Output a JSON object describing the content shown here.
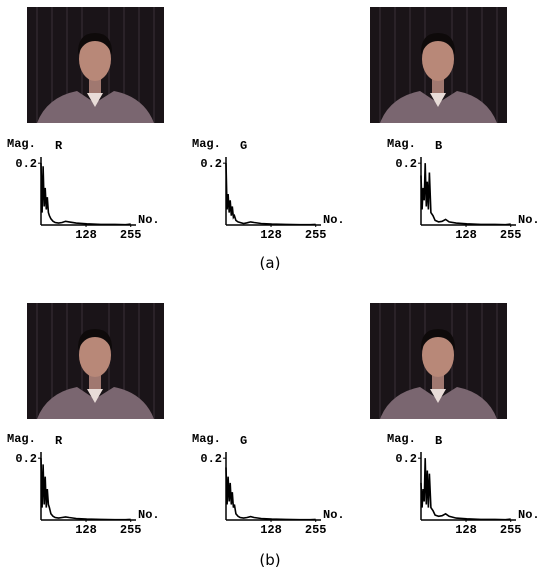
{
  "chart_data": [
    {
      "type": "line",
      "title": "R",
      "y_label": "Mag.",
      "x_label": "No.",
      "color": "#000000",
      "x": [
        0,
        3,
        6,
        9,
        12,
        15,
        18,
        21,
        24,
        28,
        34,
        40,
        50,
        60,
        70,
        80,
        100,
        130,
        170,
        210,
        240,
        255
      ],
      "values": [
        0.2,
        0.04,
        0.19,
        0.06,
        0.12,
        0.05,
        0.09,
        0.04,
        0.03,
        0.02,
        0.012,
        0.008,
        0.006,
        0.008,
        0.012,
        0.01,
        0.006,
        0.004,
        0.002,
        0.002,
        0.001,
        0.003
      ],
      "xlim": [
        0,
        270
      ],
      "ylim": [
        0,
        0.22
      ],
      "xticks": [
        128,
        255
      ],
      "yticks": [
        0.2
      ]
    },
    {
      "type": "line",
      "title": "G",
      "y_label": "Mag.",
      "x_label": "No.",
      "color": "#000000",
      "x": [
        0,
        3,
        6,
        9,
        12,
        15,
        18,
        21,
        24,
        28,
        34,
        40,
        50,
        60,
        70,
        80,
        100,
        130,
        170,
        210,
        240,
        255
      ],
      "values": [
        0.2,
        0.05,
        0.1,
        0.04,
        0.08,
        0.03,
        0.06,
        0.025,
        0.03,
        0.015,
        0.01,
        0.008,
        0.005,
        0.007,
        0.01,
        0.008,
        0.005,
        0.003,
        0.002,
        0.001,
        0.001,
        0.002
      ],
      "xlim": [
        0,
        270
      ],
      "ylim": [
        0,
        0.22
      ],
      "xticks": [
        128,
        255
      ],
      "yticks": [
        0.2
      ]
    },
    {
      "type": "line",
      "title": "B",
      "y_label": "Mag.",
      "x_label": "No.",
      "color": "#000000",
      "x": [
        0,
        3,
        6,
        9,
        12,
        15,
        18,
        21,
        24,
        28,
        34,
        40,
        50,
        60,
        70,
        80,
        100,
        130,
        170,
        210,
        240,
        255
      ],
      "values": [
        0.16,
        0.05,
        0.12,
        0.08,
        0.2,
        0.06,
        0.14,
        0.05,
        0.17,
        0.04,
        0.03,
        0.015,
        0.01,
        0.012,
        0.018,
        0.01,
        0.006,
        0.004,
        0.002,
        0.002,
        0.001,
        0.003
      ],
      "xlim": [
        0,
        270
      ],
      "ylim": [
        0,
        0.22
      ],
      "xticks": [
        128,
        255
      ],
      "yticks": [
        0.2
      ]
    },
    {
      "type": "line",
      "title": "R",
      "y_label": "Mag.",
      "x_label": "No.",
      "color": "#000000",
      "x": [
        0,
        3,
        6,
        9,
        12,
        15,
        18,
        21,
        24,
        28,
        34,
        40,
        50,
        60,
        70,
        80,
        100,
        130,
        170,
        210,
        240,
        255
      ],
      "values": [
        0.2,
        0.04,
        0.18,
        0.05,
        0.14,
        0.04,
        0.1,
        0.05,
        0.04,
        0.02,
        0.012,
        0.008,
        0.006,
        0.008,
        0.01,
        0.008,
        0.005,
        0.003,
        0.002,
        0.001,
        0.001,
        0.002
      ],
      "xlim": [
        0,
        270
      ],
      "ylim": [
        0,
        0.22
      ],
      "xticks": [
        128,
        255
      ],
      "yticks": [
        0.2
      ]
    },
    {
      "type": "line",
      "title": "G",
      "y_label": "Mag.",
      "x_label": "No.",
      "color": "#000000",
      "x": [
        0,
        3,
        6,
        9,
        12,
        15,
        18,
        21,
        24,
        28,
        34,
        40,
        50,
        60,
        70,
        80,
        100,
        130,
        170,
        210,
        240,
        255
      ],
      "values": [
        0.17,
        0.05,
        0.14,
        0.06,
        0.12,
        0.05,
        0.09,
        0.04,
        0.05,
        0.02,
        0.012,
        0.008,
        0.006,
        0.008,
        0.011,
        0.008,
        0.005,
        0.003,
        0.002,
        0.001,
        0.001,
        0.002
      ],
      "xlim": [
        0,
        270
      ],
      "ylim": [
        0,
        0.22
      ],
      "xticks": [
        128,
        255
      ],
      "yticks": [
        0.2
      ]
    },
    {
      "type": "line",
      "title": "B",
      "y_label": "Mag.",
      "x_label": "No.",
      "color": "#000000",
      "x": [
        0,
        3,
        6,
        9,
        12,
        15,
        18,
        21,
        24,
        28,
        34,
        40,
        50,
        60,
        70,
        80,
        100,
        130,
        170,
        210,
        240,
        255
      ],
      "values": [
        0.12,
        0.04,
        0.1,
        0.06,
        0.2,
        0.05,
        0.16,
        0.04,
        0.15,
        0.04,
        0.03,
        0.016,
        0.012,
        0.014,
        0.02,
        0.012,
        0.006,
        0.004,
        0.002,
        0.002,
        0.001,
        0.003
      ],
      "xlim": [
        0,
        270
      ],
      "ylim": [
        0,
        0.22
      ],
      "xticks": [
        128,
        255
      ],
      "yticks": [
        0.2
      ]
    }
  ],
  "captions": [
    "(a)",
    "(b)"
  ]
}
